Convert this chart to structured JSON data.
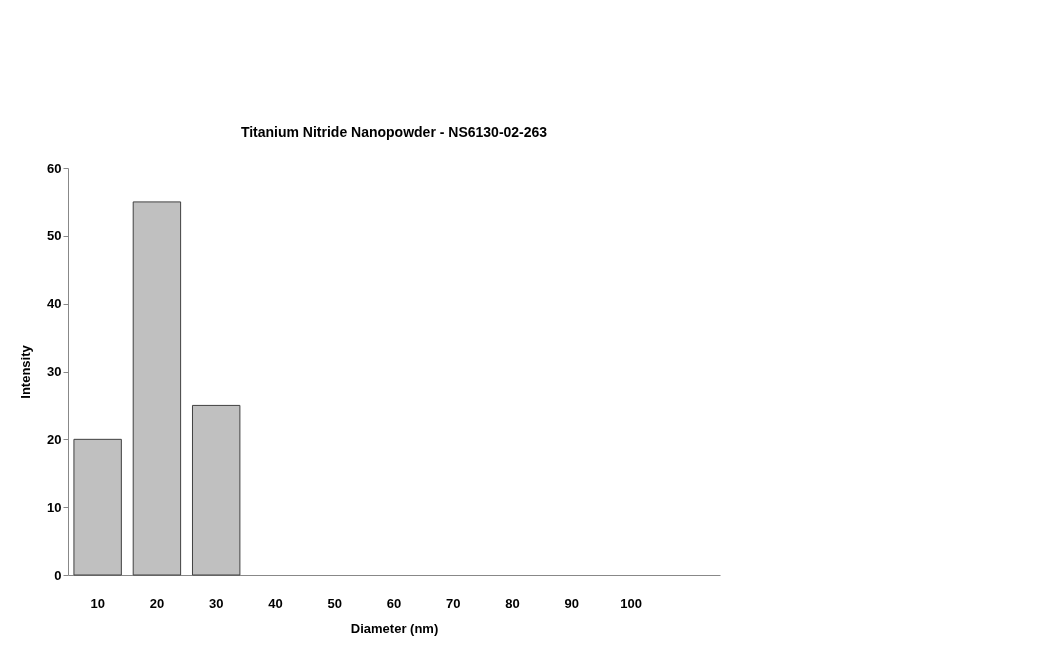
{
  "chart_data": {
    "type": "bar",
    "title": "Titanium Nitride Nanopowder - NS6130-02-263",
    "xlabel": "Diameter (nm)",
    "ylabel": "Intensity",
    "categories": [
      "10",
      "20",
      "30",
      "40",
      "50",
      "60",
      "70",
      "80",
      "90",
      "100",
      null
    ],
    "values": [
      20,
      55,
      25,
      null,
      null,
      null,
      null,
      null,
      null,
      null,
      null
    ],
    "color": "#c0c0c0",
    "ylim": [
      0,
      60
    ],
    "yticks": [
      0,
      10,
      20,
      30,
      40,
      50,
      60
    ],
    "grid": false
  }
}
